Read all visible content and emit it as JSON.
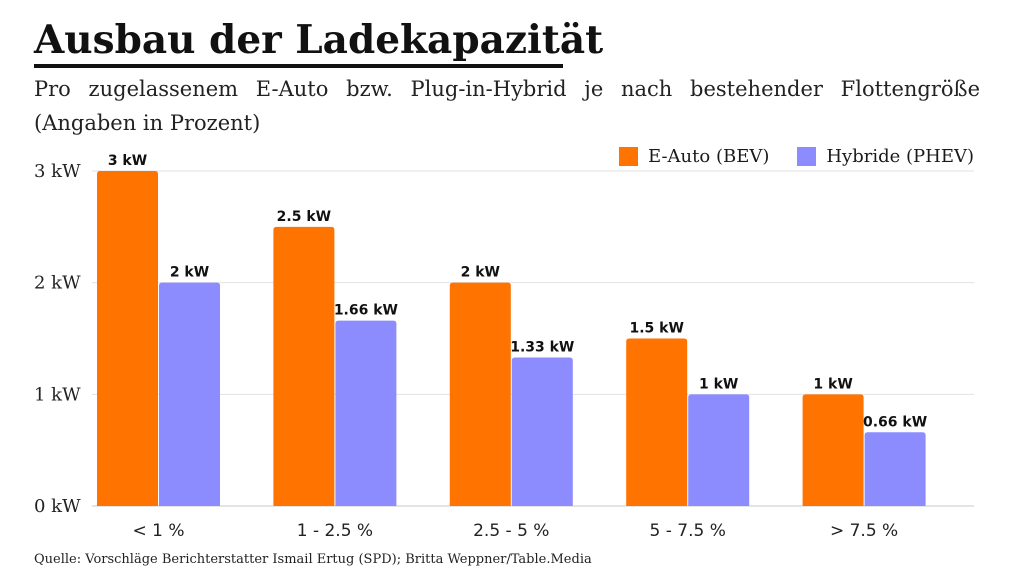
{
  "header": {
    "title": "Ausbau der Ladekapazität",
    "subtitle": "Pro zugelassenem E-Auto bzw. Plug-in-Hybrid je nach bestehender Flottengröße (Angaben in Prozent)"
  },
  "footer": {
    "source": "Quelle: Vorschläge Berichterstatter Ismail Ertug (SPD); Britta Weppner/Table.Media"
  },
  "colors": {
    "bev": "#ff7300",
    "phev": "#8c8cff",
    "grid": "#e2e2e2",
    "baseline": "#c8c8c8"
  },
  "chart_data": {
    "type": "bar",
    "title": "Ausbau der Ladekapazität",
    "subtitle": "Pro zugelassenem E-Auto bzw. Plug-in-Hybrid je nach bestehender Flottengröße (Angaben in Prozent)",
    "xlabel": "",
    "ylabel": "",
    "ylim": [
      0,
      3
    ],
    "yticks": [
      0,
      1,
      2,
      3
    ],
    "ytick_labels": [
      "0 kW",
      "1 kW",
      "2 kW",
      "3 kW"
    ],
    "grid": true,
    "legend_position": "top-right",
    "categories": [
      "< 1 %",
      "1 - 2.5 %",
      "2.5 - 5 %",
      "5 - 7.5 %",
      "> 7.5 %"
    ],
    "series": [
      {
        "name": "E-Auto (BEV)",
        "color": "#ff7300",
        "values": [
          3,
          2.5,
          2,
          1.5,
          1
        ],
        "labels": [
          "3 kW",
          "2.5 kW",
          "2 kW",
          "1.5 kW",
          "1 kW"
        ]
      },
      {
        "name": "Hybride (PHEV)",
        "color": "#8c8cff",
        "values": [
          2,
          1.66,
          1.33,
          1,
          0.66
        ],
        "labels": [
          "2 kW",
          "1.66 kW",
          "1.33 kW",
          "1 kW",
          "0.66 kW"
        ]
      }
    ]
  }
}
